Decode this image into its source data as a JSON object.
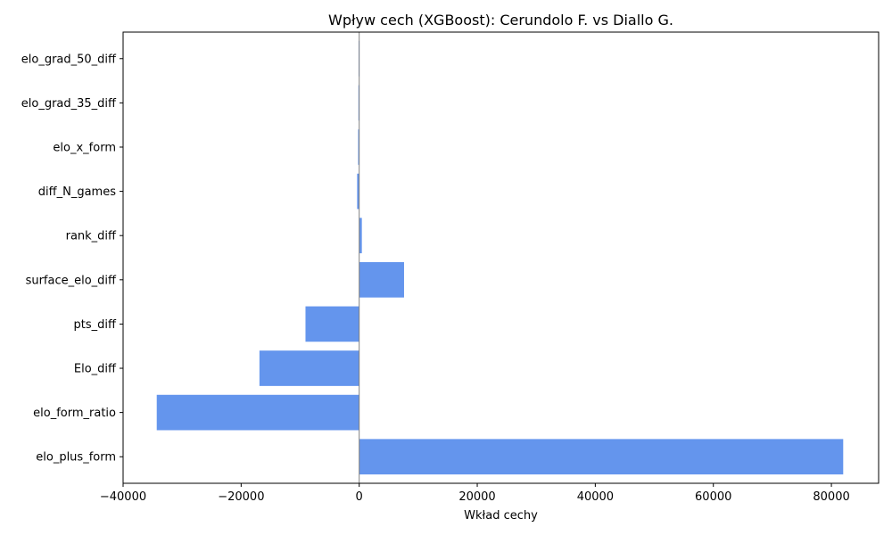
{
  "chart_data": {
    "type": "bar",
    "orientation": "horizontal",
    "title": "Wpływ cech (XGBoost): Cerundolo F. vs Diallo G.",
    "xlabel": "Wkład cechy",
    "ylabel": "",
    "categories": [
      "elo_plus_form",
      "elo_form_ratio",
      "Elo_diff",
      "pts_diff",
      "surface_elo_diff",
      "rank_diff",
      "diff_N_games",
      "elo_x_form",
      "elo_grad_35_diff",
      "elo_grad_50_diff"
    ],
    "values": [
      82000,
      -34300,
      -16900,
      -9100,
      7600,
      450,
      -350,
      -180,
      -130,
      -100
    ],
    "xlim": [
      -40000,
      88000
    ],
    "xticks": [
      -40000,
      -20000,
      0,
      20000,
      40000,
      60000,
      80000
    ],
    "xtick_labels": [
      "−40000",
      "−20000",
      "0",
      "20000",
      "40000",
      "60000",
      "80000"
    ],
    "zero_line": true,
    "grid": false,
    "bar_color": "#6495ED",
    "zero_line_color": "#808080"
  }
}
